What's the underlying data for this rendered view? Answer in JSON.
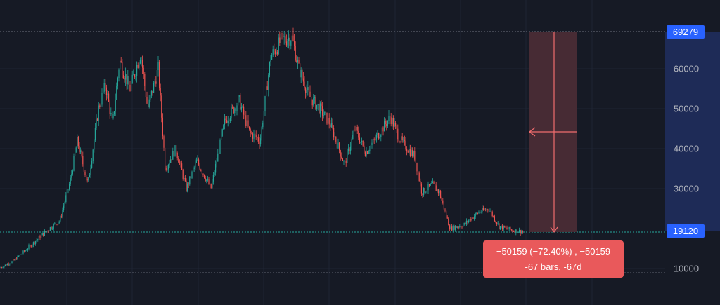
{
  "chart_data": {
    "type": "candlestick",
    "y_axis": {
      "ticks": [
        {
          "value": 60000,
          "label": "60000"
        },
        {
          "value": 50000,
          "label": "50000"
        },
        {
          "value": 40000,
          "label": "40000"
        },
        {
          "value": 30000,
          "label": "30000"
        },
        {
          "value": 10000,
          "label": "10000"
        }
      ],
      "range": [
        5000,
        76000
      ]
    },
    "price_lines": {
      "high": {
        "value": 69279,
        "label": "69279"
      },
      "current": {
        "value": 19120,
        "label": "19120"
      }
    },
    "measurement": {
      "from_price": 69279,
      "to_price": 19120,
      "line1": "−50159 (−72.40%) , −50159",
      "line2": "-67 bars, -67d"
    },
    "price_path": [
      [
        0,
        10200
      ],
      [
        20,
        12000
      ],
      [
        45,
        16000
      ],
      [
        70,
        20000
      ],
      [
        85,
        22000
      ],
      [
        100,
        32000
      ],
      [
        110,
        42000
      ],
      [
        125,
        31000
      ],
      [
        140,
        50000
      ],
      [
        150,
        56000
      ],
      [
        160,
        46000
      ],
      [
        170,
        62000
      ],
      [
        185,
        55000
      ],
      [
        200,
        64000
      ],
      [
        210,
        50000
      ],
      [
        225,
        60000
      ],
      [
        235,
        35000
      ],
      [
        250,
        40000
      ],
      [
        265,
        30000
      ],
      [
        280,
        37000
      ],
      [
        300,
        30000
      ],
      [
        320,
        47000
      ],
      [
        340,
        52000
      ],
      [
        355,
        44000
      ],
      [
        370,
        42000
      ],
      [
        385,
        63000
      ],
      [
        400,
        67000
      ],
      [
        415,
        68000
      ],
      [
        425,
        60000
      ],
      [
        440,
        53000
      ],
      [
        455,
        50000
      ],
      [
        470,
        46000
      ],
      [
        490,
        36000
      ],
      [
        505,
        45000
      ],
      [
        520,
        39000
      ],
      [
        540,
        44000
      ],
      [
        555,
        48000
      ],
      [
        570,
        42000
      ],
      [
        590,
        38000
      ],
      [
        600,
        29000
      ],
      [
        615,
        31000
      ],
      [
        625,
        29000
      ],
      [
        640,
        20000
      ],
      [
        660,
        21000
      ],
      [
        680,
        24000
      ],
      [
        695,
        25000
      ],
      [
        710,
        20500
      ],
      [
        730,
        19500
      ],
      [
        745,
        19200
      ]
    ],
    "colors": {
      "up": "#26a69a",
      "down": "#ef5350",
      "background": "#161a25",
      "price_label": "#2962ff",
      "axis_panel": "#1e2b57",
      "measure_zone": "#4a2c35",
      "measure_line": "#f06c6e",
      "tooltip": "#e9595b"
    }
  }
}
